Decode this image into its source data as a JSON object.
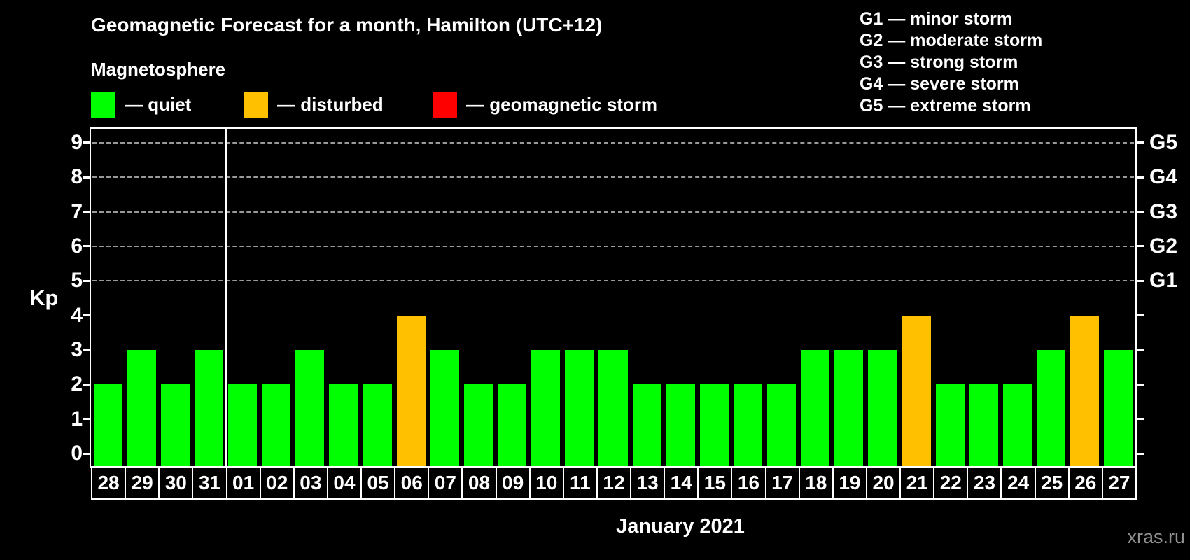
{
  "title": "Geomagnetic Forecast for a month, Hamilton (UTC+12)",
  "subtitle": "Magnetosphere",
  "legend": {
    "items": [
      {
        "key": "quiet",
        "label": "— quiet",
        "color": "#00ff00",
        "x": 130
      },
      {
        "key": "disturbed",
        "label": "— disturbed",
        "color": "#ffc000",
        "x": 348
      },
      {
        "key": "storm",
        "label": "— geomagnetic storm",
        "color": "#ff0000",
        "x": 618
      }
    ]
  },
  "storm_scale": [
    "G1 — minor storm",
    "G2 — moderate storm",
    "G3 — strong storm",
    "G4 — severe storm",
    "G5 — extreme storm"
  ],
  "watermark": "xras.ru",
  "chart_data": {
    "type": "bar",
    "title": "Geomagnetic Forecast for a month, Hamilton (UTC+12)",
    "xlabel": "January 2021",
    "ylabel": "Kp",
    "ylim": [
      0,
      9
    ],
    "yticks": [
      0,
      1,
      2,
      3,
      4,
      5,
      6,
      7,
      8,
      9
    ],
    "gridlines_at": [
      5,
      6,
      7,
      8,
      9
    ],
    "grid_style": "dashed",
    "legend_position": "top",
    "right_axis": [
      {
        "kp": 5,
        "label": "G1"
      },
      {
        "kp": 6,
        "label": "G2"
      },
      {
        "kp": 7,
        "label": "G3"
      },
      {
        "kp": 8,
        "label": "G4"
      },
      {
        "kp": 9,
        "label": "G5"
      }
    ],
    "colors": {
      "quiet": "#00ff00",
      "disturbed": "#ffc000",
      "storm": "#ff0000"
    },
    "month_boundary_after_index": 3,
    "categories": [
      "28",
      "29",
      "30",
      "31",
      "01",
      "02",
      "03",
      "04",
      "05",
      "06",
      "07",
      "08",
      "09",
      "10",
      "11",
      "12",
      "13",
      "14",
      "15",
      "16",
      "17",
      "18",
      "19",
      "20",
      "21",
      "22",
      "23",
      "24",
      "25",
      "26",
      "27"
    ],
    "values": [
      2,
      3,
      2,
      3,
      2,
      2,
      3,
      2,
      2,
      4,
      3,
      2,
      2,
      3,
      3,
      3,
      2,
      2,
      2,
      2,
      2,
      3,
      3,
      3,
      4,
      2,
      2,
      2,
      3,
      4,
      3
    ],
    "days": [
      {
        "day": "28",
        "kp": 2,
        "state": "quiet"
      },
      {
        "day": "29",
        "kp": 3,
        "state": "quiet"
      },
      {
        "day": "30",
        "kp": 2,
        "state": "quiet"
      },
      {
        "day": "31",
        "kp": 3,
        "state": "quiet"
      },
      {
        "day": "01",
        "kp": 2,
        "state": "quiet"
      },
      {
        "day": "02",
        "kp": 2,
        "state": "quiet"
      },
      {
        "day": "03",
        "kp": 3,
        "state": "quiet"
      },
      {
        "day": "04",
        "kp": 2,
        "state": "quiet"
      },
      {
        "day": "05",
        "kp": 2,
        "state": "quiet"
      },
      {
        "day": "06",
        "kp": 4,
        "state": "disturbed"
      },
      {
        "day": "07",
        "kp": 3,
        "state": "quiet"
      },
      {
        "day": "08",
        "kp": 2,
        "state": "quiet"
      },
      {
        "day": "09",
        "kp": 2,
        "state": "quiet"
      },
      {
        "day": "10",
        "kp": 3,
        "state": "quiet"
      },
      {
        "day": "11",
        "kp": 3,
        "state": "quiet"
      },
      {
        "day": "12",
        "kp": 3,
        "state": "quiet"
      },
      {
        "day": "13",
        "kp": 2,
        "state": "quiet"
      },
      {
        "day": "14",
        "kp": 2,
        "state": "quiet"
      },
      {
        "day": "15",
        "kp": 2,
        "state": "quiet"
      },
      {
        "day": "16",
        "kp": 2,
        "state": "quiet"
      },
      {
        "day": "17",
        "kp": 2,
        "state": "quiet"
      },
      {
        "day": "18",
        "kp": 3,
        "state": "quiet"
      },
      {
        "day": "19",
        "kp": 3,
        "state": "quiet"
      },
      {
        "day": "20",
        "kp": 3,
        "state": "quiet"
      },
      {
        "day": "21",
        "kp": 4,
        "state": "disturbed"
      },
      {
        "day": "22",
        "kp": 2,
        "state": "quiet"
      },
      {
        "day": "23",
        "kp": 2,
        "state": "quiet"
      },
      {
        "day": "24",
        "kp": 2,
        "state": "quiet"
      },
      {
        "day": "25",
        "kp": 3,
        "state": "quiet"
      },
      {
        "day": "26",
        "kp": 4,
        "state": "disturbed"
      },
      {
        "day": "27",
        "kp": 3,
        "state": "quiet"
      }
    ]
  }
}
